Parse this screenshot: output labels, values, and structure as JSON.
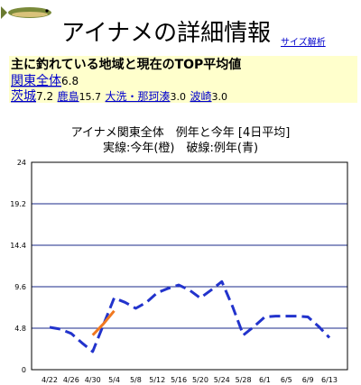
{
  "header": {
    "title": "アイナメの詳細情報",
    "size_link": "サイズ解析"
  },
  "summary": {
    "heading": "主に釣れている地域と現在のTOP平均値",
    "regions": [
      {
        "name": "関東全体",
        "value": "6.8"
      },
      {
        "name": "茨城",
        "value": "7.2"
      },
      {
        "name": "鹿島",
        "value": "15.7"
      },
      {
        "name": "大洗・那珂湊",
        "value": "3.0"
      },
      {
        "name": "波崎",
        "value": "3.0"
      }
    ]
  },
  "chart_data": {
    "type": "line",
    "title": "アイナメ関東全体　例年と今年 [4日平均]",
    "subtitle": "実線:今年(橙)　破線:例年(青)",
    "categories": [
      "4/22",
      null,
      "4/26",
      null,
      "4/30",
      null,
      "5/4",
      null,
      "5/8",
      null,
      "5/12",
      null,
      "5/16",
      null,
      "5/20",
      null,
      "5/24",
      null,
      "5/28",
      null,
      "6/1",
      null,
      "6/5",
      null,
      "6/9",
      null,
      "6/13"
    ],
    "series": [
      {
        "color": "#2233cc",
        "dashed": true,
        "values": [
          4.9,
          4.7,
          4.2,
          3.1,
          2.1,
          5.2,
          8.3,
          7.8,
          7.1,
          7.8,
          8.9,
          9.4,
          9.8,
          9.2,
          8.3,
          9.2,
          10.2,
          7.3,
          4.0,
          5.0,
          6.1,
          6.2,
          6.2,
          6.2,
          6.1,
          5.0,
          3.7
        ]
      },
      {
        "color": "#f07820",
        "dashed": false,
        "values": [
          null,
          null,
          null,
          null,
          4.0,
          5.3,
          6.8,
          null,
          null,
          null,
          null,
          null,
          null,
          null,
          null,
          null,
          null,
          null,
          null,
          null,
          null,
          null,
          null,
          null,
          null,
          null,
          null
        ]
      }
    ],
    "ylim": [
      0,
      24
    ],
    "yticks": [
      0,
      4.8,
      9.6,
      14.4,
      19.2,
      24
    ],
    "grid": true
  }
}
